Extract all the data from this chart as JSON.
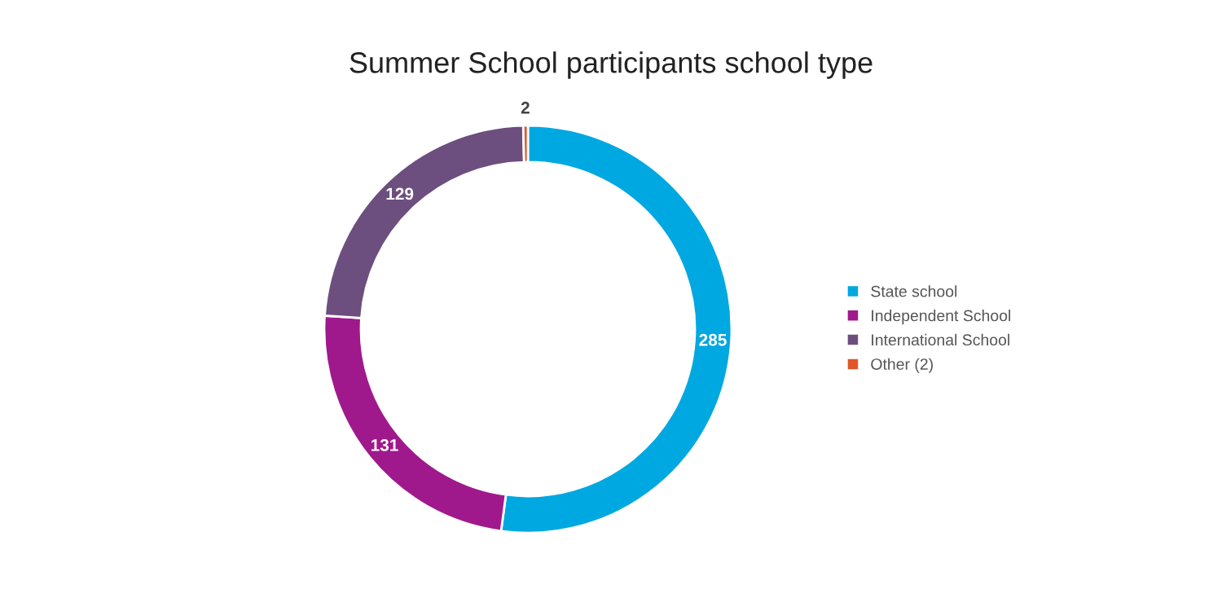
{
  "chart_data": {
    "type": "donut",
    "title": "Summer School participants school type",
    "categories": [
      "State school",
      "Independent School",
      "International School",
      "Other (2)"
    ],
    "values": [
      285,
      131,
      129,
      2
    ],
    "colors": [
      "#00a8e1",
      "#a0198c",
      "#6c4f7e",
      "#e0572a"
    ],
    "data_labels": true,
    "legend": "right"
  }
}
